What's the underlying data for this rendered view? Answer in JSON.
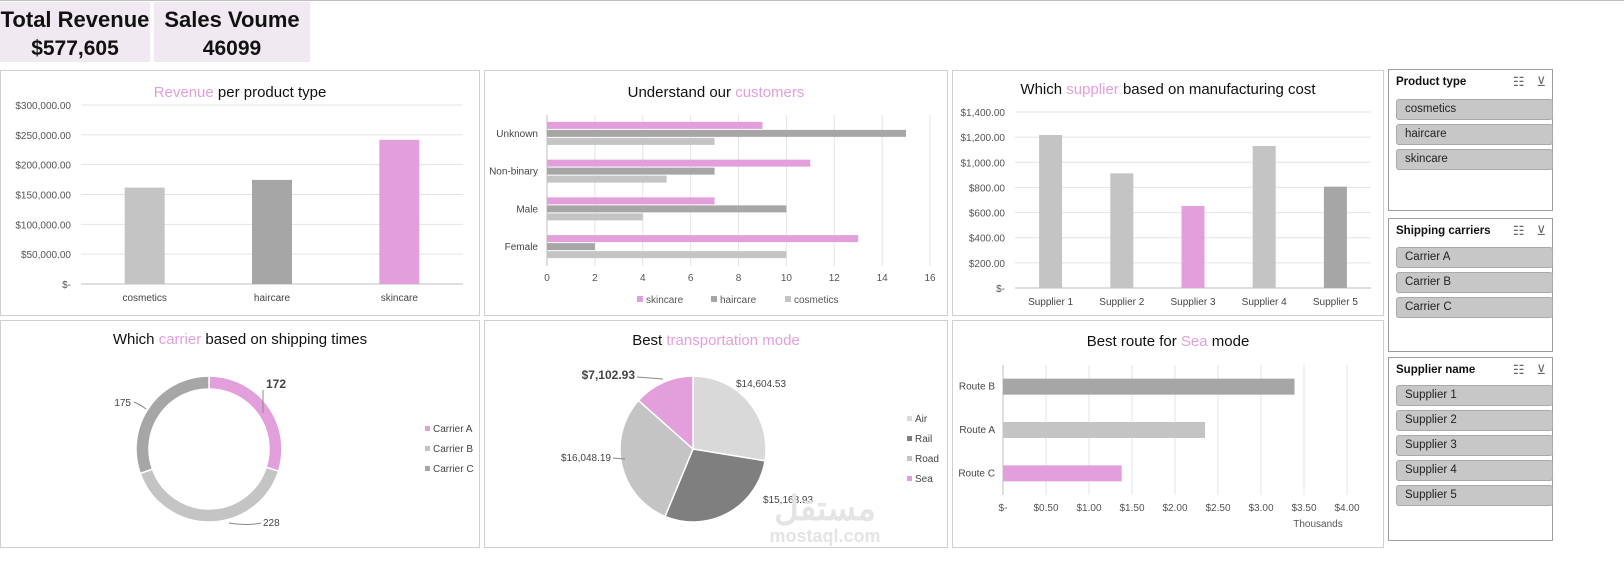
{
  "kpis": {
    "revenue_label": "Total Revenue",
    "revenue_value": "$577,605",
    "volume_label": "Sales Voume",
    "volume_value": "46099"
  },
  "colors": {
    "accent": "#e39fdc",
    "grey_light": "#c4c4c4",
    "grey_mid": "#a6a6a6",
    "grey_dark": "#7f7f7f"
  },
  "charts": {
    "revenue": {
      "title_accent": "Revenue",
      "title_rest": " per product type"
    },
    "customers": {
      "title_pre": "Understand our ",
      "title_accent": "customers"
    },
    "supplier": {
      "title_pre": "Which ",
      "title_accent": "supplier",
      "title_post": " based on manufacturing cost"
    },
    "carrier": {
      "title_pre": "Which ",
      "title_accent": "carrier",
      "title_post": " based on shipping times"
    },
    "transport": {
      "title_pre": "Best ",
      "title_accent": "transportation mode"
    },
    "route": {
      "title_pre": "Best route for ",
      "title_accent": "Sea",
      "title_post": " mode"
    }
  },
  "chart_data": [
    {
      "type": "bar",
      "categories": [
        "cosmetics",
        "haircare",
        "skincare"
      ],
      "values": [
        161521,
        174455,
        241628
      ],
      "ylim": [
        0,
        300000
      ],
      "yticks": [
        "$-",
        "$50,000.00",
        "$100,000.00",
        "$150,000.00",
        "$200,000.00",
        "$250,000.00",
        "$300,000.00"
      ],
      "grid": true
    },
    {
      "type": "bar",
      "orientation": "horizontal",
      "categories": [
        "Female",
        "Male",
        "Non-binary",
        "Unknown"
      ],
      "series": [
        {
          "name": "skincare",
          "values": [
            13,
            7,
            11,
            9
          ]
        },
        {
          "name": "haircare",
          "values": [
            2,
            10,
            7,
            15
          ]
        },
        {
          "name": "cosmetics",
          "values": [
            10,
            4,
            5,
            7
          ]
        }
      ],
      "xlim": [
        0,
        16
      ],
      "xticks": [
        "0",
        "2",
        "4",
        "6",
        "8",
        "10",
        "12",
        "14",
        "16"
      ],
      "legend": "bottom",
      "grid": true
    },
    {
      "type": "bar",
      "categories": [
        "Supplier 1",
        "Supplier 2",
        "Supplier 3",
        "Supplier 4",
        "Supplier 5"
      ],
      "values": [
        1217,
        912,
        652,
        1130,
        806
      ],
      "ylim": [
        0,
        1400
      ],
      "yticks": [
        "$-",
        "$200.00",
        "$400.00",
        "$600.00",
        "$800.00",
        "$1,000.00",
        "$1,200.00",
        "$1,400.00"
      ],
      "grid": true
    },
    {
      "type": "pie",
      "style": "donut",
      "categories": [
        "Carrier A",
        "Carrier B",
        "Carrier C"
      ],
      "values": [
        172,
        228,
        175
      ],
      "labels": [
        "172",
        "228",
        "175"
      ],
      "legend": "right"
    },
    {
      "type": "pie",
      "categories": [
        "Air",
        "Rail",
        "Road",
        "Sea"
      ],
      "values": [
        14604.53,
        15168.93,
        16048.19,
        7102.93
      ],
      "labels": [
        "$14,604.53",
        "$15,168.93",
        "$16,048.19",
        "$7,102.93"
      ],
      "legend": "right"
    },
    {
      "type": "bar",
      "orientation": "horizontal",
      "categories": [
        "Route B",
        "Route A",
        "Route C"
      ],
      "values": [
        3390,
        2350,
        1380
      ],
      "xlim": [
        0,
        4000
      ],
      "xticks": [
        "$-",
        "$0.50",
        "$1.00",
        "$1.50",
        "$2.00",
        "$2.50",
        "$3.00",
        "$3.50",
        "$4.00"
      ],
      "xlabel": "Thousands",
      "grid": true
    }
  ],
  "slicers": [
    {
      "title": "Product type",
      "items": [
        "cosmetics",
        "haircare",
        "skincare"
      ]
    },
    {
      "title": "Shipping carriers",
      "items": [
        "Carrier A",
        "Carrier B",
        "Carrier C"
      ]
    },
    {
      "title": "Supplier name",
      "items": [
        "Supplier 1",
        "Supplier 2",
        "Supplier 3",
        "Supplier 4",
        "Supplier 5"
      ]
    }
  ],
  "slicer_icons": [
    "multi-select-icon",
    "clear-filter-icon"
  ],
  "watermark": {
    "arabic": "مستقل",
    "latin": "mostaql.com"
  }
}
